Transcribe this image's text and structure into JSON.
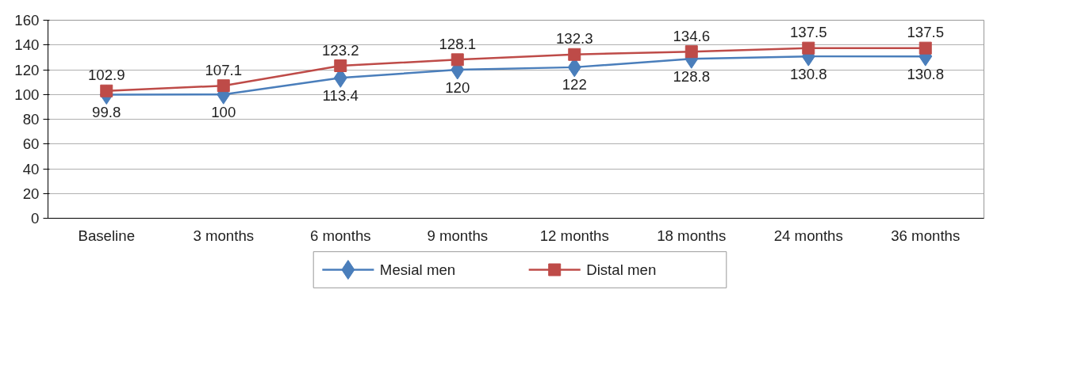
{
  "chart_data": {
    "type": "line",
    "categories": [
      "Baseline",
      "3 months",
      "6 months",
      "9 months",
      "12 months",
      "18 months",
      "24 months",
      "36 months"
    ],
    "series": [
      {
        "name": "Mesial men",
        "color": "#4a7ebb",
        "marker": "diamond",
        "values": [
          99.8,
          100,
          113.4,
          120,
          122,
          128.8,
          130.8,
          130.8
        ]
      },
      {
        "name": "Distal men",
        "color": "#be4b48",
        "marker": "square",
        "values": [
          102.9,
          107.1,
          123.2,
          128.1,
          132.3,
          134.6,
          137.5,
          137.5
        ]
      }
    ],
    "ylim": [
      0,
      160
    ],
    "yticks": [
      0,
      20,
      40,
      60,
      80,
      100,
      120,
      140,
      160
    ],
    "grid": "y",
    "legend": "bottom",
    "data_labels": true
  }
}
